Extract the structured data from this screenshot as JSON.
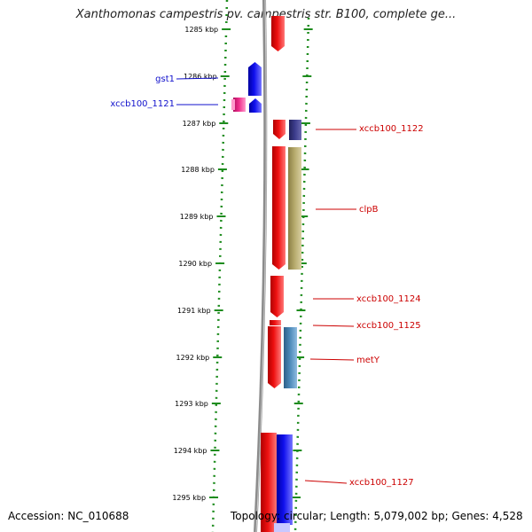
{
  "title": "Xanthomonas campestris pv. campestris str. B100, complete ge...",
  "footer": {
    "accession": "Accession: NC_010688",
    "topology": "Topology: circular; Length: 5,079,002 bp; Genes: 4,528"
  },
  "kbp_labels": [
    "1285 kbp",
    "1286 kbp",
    "1287 kbp",
    "1288 kbp",
    "1289 kbp",
    "1290 kbp",
    "1291 kbp",
    "1292 kbp",
    "1293 kbp",
    "1294 kbp",
    "1295 kbp"
  ],
  "colors": {
    "ring": "#8c8c8c",
    "scale": "#1e8c1e",
    "red": "#ee1111",
    "blue": "#1010ee",
    "pink": "#ee2a8a",
    "navy": "#3b3b8a",
    "khaki": "#b4a86a",
    "steel": "#4a88b8",
    "label_blue": "#1010cc",
    "label_red": "#cc0000"
  },
  "gene_labels": [
    {
      "id": "gst1",
      "text": "gst1",
      "color": "blue"
    },
    {
      "id": "xccb100_1121",
      "text": "xccb100_1121",
      "color": "blue"
    },
    {
      "id": "xccb100_1122",
      "text": "xccb100_1122",
      "color": "red"
    },
    {
      "id": "clpB",
      "text": "clpB",
      "color": "red"
    },
    {
      "id": "xccb100_1124",
      "text": "xccb100_1124",
      "color": "red"
    },
    {
      "id": "xccb100_1125",
      "text": "xccb100_1125",
      "color": "red"
    },
    {
      "id": "metY",
      "text": "metY",
      "color": "red"
    },
    {
      "id": "xccb100_1127",
      "text": "xccb100_1127",
      "color": "red"
    }
  ]
}
